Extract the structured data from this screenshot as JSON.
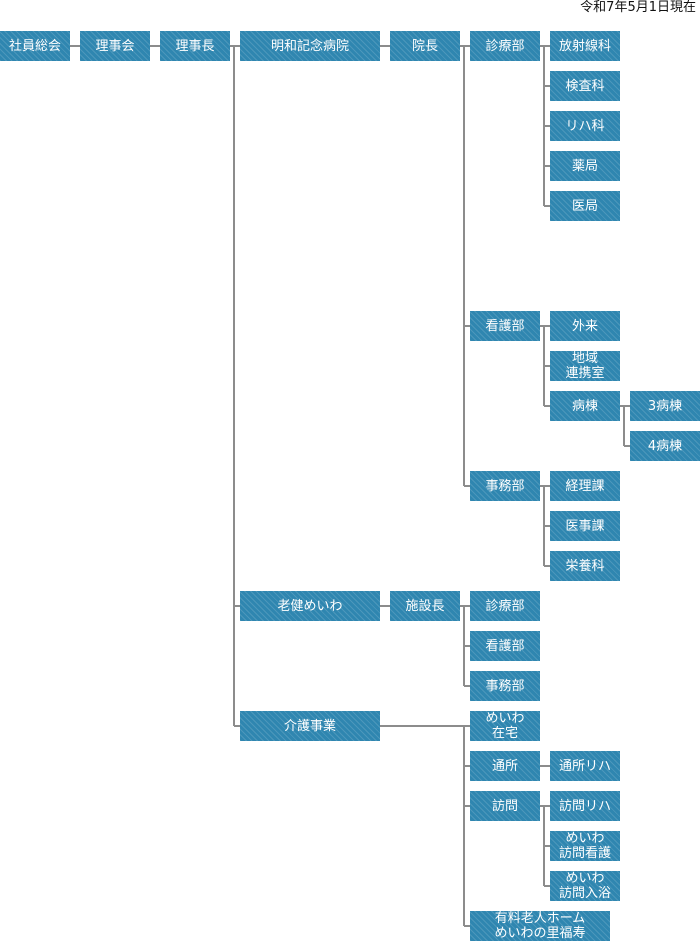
{
  "as_of": "令和7年5月1日現在",
  "nodes": {
    "general_meeting": "社員総会",
    "board": "理事会",
    "chairman": "理事長",
    "hospital": "明和記念病院",
    "director": "院長",
    "h_medical": "診療部",
    "radiology": "放射線科",
    "lab": "検査科",
    "rehab": "リハ科",
    "pharmacy": "薬局",
    "medical_office": "医局",
    "h_nursing": "看護部",
    "outpatient": "外来",
    "liaison_1": "地域",
    "liaison_2": "連携室",
    "ward": "病棟",
    "ward3": "3病棟",
    "ward4": "4病棟",
    "h_admin": "事務部",
    "accounting": "経理課",
    "medical_affairs": "医事課",
    "nutrition": "栄養科",
    "roken": "老健めいわ",
    "facility_head": "施設長",
    "r_medical": "診療部",
    "r_nursing": "看護部",
    "r_admin": "事務部",
    "care_business": "介護事業",
    "home_care_1": "めいわ",
    "home_care_2": "在宅",
    "day_service": "通所",
    "visit": "訪問",
    "day_rehab": "通所リハ",
    "visit_rehab": "訪問リハ",
    "visit_nursing_1": "めいわ",
    "visit_nursing_2": "訪問看護",
    "visit_bath_1": "めいわ",
    "visit_bath_2": "訪問入浴",
    "nursing_home_1": "有料老人ホーム",
    "nursing_home_2": "めいわの里福寿"
  },
  "colors": {
    "box": "#2f86b0",
    "line": "#8c8c8c",
    "text": "#ffffff"
  }
}
